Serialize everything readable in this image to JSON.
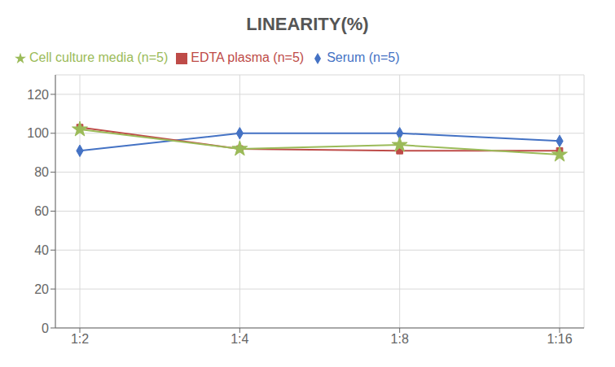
{
  "chart_data": {
    "type": "line",
    "title": "LINEARITY(%)",
    "categories": [
      "1:2",
      "1:4",
      "1:8",
      "1:16"
    ],
    "series": [
      {
        "name": "Serum (n=5)",
        "color": "#4472C4",
        "marker": "diamond",
        "values": [
          91,
          100,
          100,
          96
        ]
      },
      {
        "name": "EDTA plasma (n=5)",
        "color": "#BE4B48",
        "marker": "square",
        "values": [
          103,
          92,
          91,
          91
        ]
      },
      {
        "name": "Cell culture media (n=5)",
        "color": "#9BBB59",
        "marker": "star",
        "values": [
          102,
          92,
          94,
          89
        ]
      }
    ],
    "ylim": [
      0,
      130
    ],
    "yticks": [
      0,
      20,
      40,
      60,
      80,
      100,
      120
    ],
    "grid": true,
    "legend": "top"
  }
}
